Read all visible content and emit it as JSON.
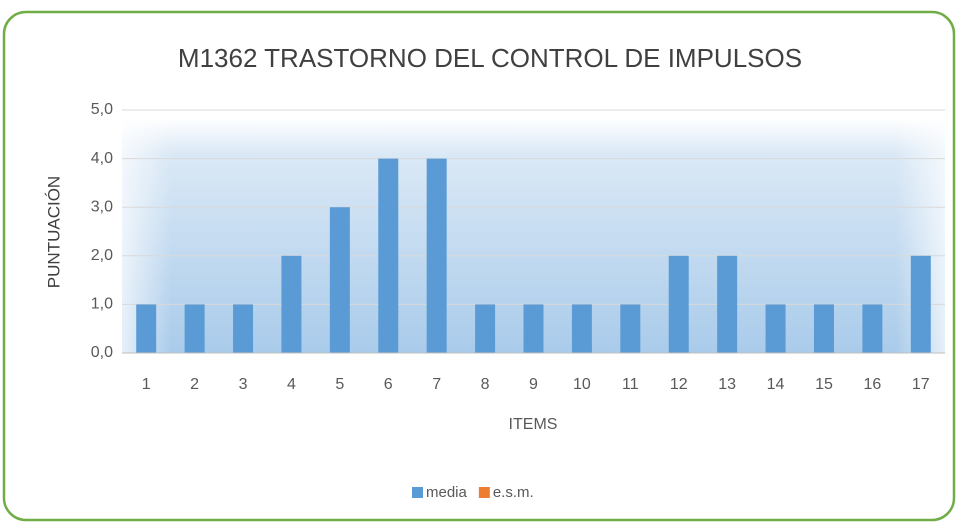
{
  "chart_data": {
    "type": "bar",
    "title": "M1362 TRASTORNO DEL CONTROL DE IMPULSOS",
    "x_label": "ITEMS",
    "y_label": "PUNTUACIÓN",
    "categories": [
      "1",
      "2",
      "3",
      "4",
      "5",
      "6",
      "7",
      "8",
      "9",
      "10",
      "11",
      "12",
      "13",
      "14",
      "15",
      "16",
      "17"
    ],
    "series": [
      {
        "name": "media",
        "color": "#5b9bd5",
        "values": [
          1,
          1,
          1,
          2,
          3,
          4,
          4,
          1,
          1,
          1,
          1,
          2,
          2,
          1,
          1,
          1,
          2
        ]
      },
      {
        "name": "e.s.m.",
        "color": "#ed7d31",
        "values": [
          0,
          0,
          0,
          0,
          0,
          0,
          0,
          0,
          0,
          0,
          0,
          0,
          0,
          0,
          0,
          0,
          0
        ]
      }
    ],
    "ylim": [
      0,
      5
    ],
    "yticks": [
      {
        "value": 0,
        "label": "0,0"
      },
      {
        "value": 1,
        "label": "1,0"
      },
      {
        "value": 2,
        "label": "2,0"
      },
      {
        "value": 3,
        "label": "3,0"
      },
      {
        "value": 4,
        "label": "4,0"
      },
      {
        "value": 5,
        "label": "5,0"
      }
    ],
    "grid": true,
    "legend": "bottom"
  }
}
